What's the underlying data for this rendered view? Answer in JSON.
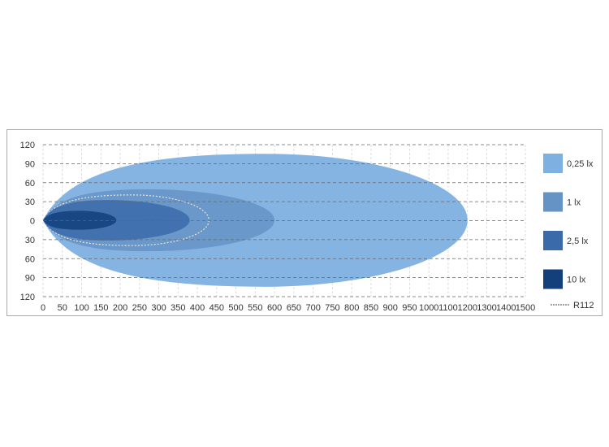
{
  "chart_data": {
    "type": "area",
    "title": "",
    "xlabel": "",
    "ylabel": "",
    "x_ticks": [
      0,
      50,
      100,
      150,
      200,
      250,
      300,
      350,
      400,
      450,
      500,
      550,
      600,
      650,
      700,
      750,
      800,
      850,
      900,
      950,
      1000,
      1100,
      1200,
      1300,
      1400,
      1500
    ],
    "y_ticks": [
      120,
      90,
      60,
      30,
      0,
      30,
      60,
      90,
      120
    ],
    "ylim": [
      -120,
      120
    ],
    "xlim": [
      0,
      1500
    ],
    "grid": true,
    "legend_position": "right",
    "series": [
      {
        "name": "0,25 lx",
        "color": "#7eb0e2",
        "reach": 1200,
        "half_width": 105,
        "peak_at": 575
      },
      {
        "name": "1 lx",
        "color": "#6693c6",
        "reach": 600,
        "half_width": 49,
        "peak_at": 270
      },
      {
        "name": "2,5 lx",
        "color": "#3a6aaa",
        "reach": 380,
        "half_width": 32,
        "peak_at": 170
      },
      {
        "name": "10 lx",
        "color": "#133f7b",
        "reach": 190,
        "half_width": 15,
        "peak_at": 95
      }
    ],
    "reference": {
      "name": "R112",
      "style": "dashed",
      "color": "#e8e4d8",
      "reach": 430,
      "half_width": 40,
      "peak_at": 230
    }
  }
}
